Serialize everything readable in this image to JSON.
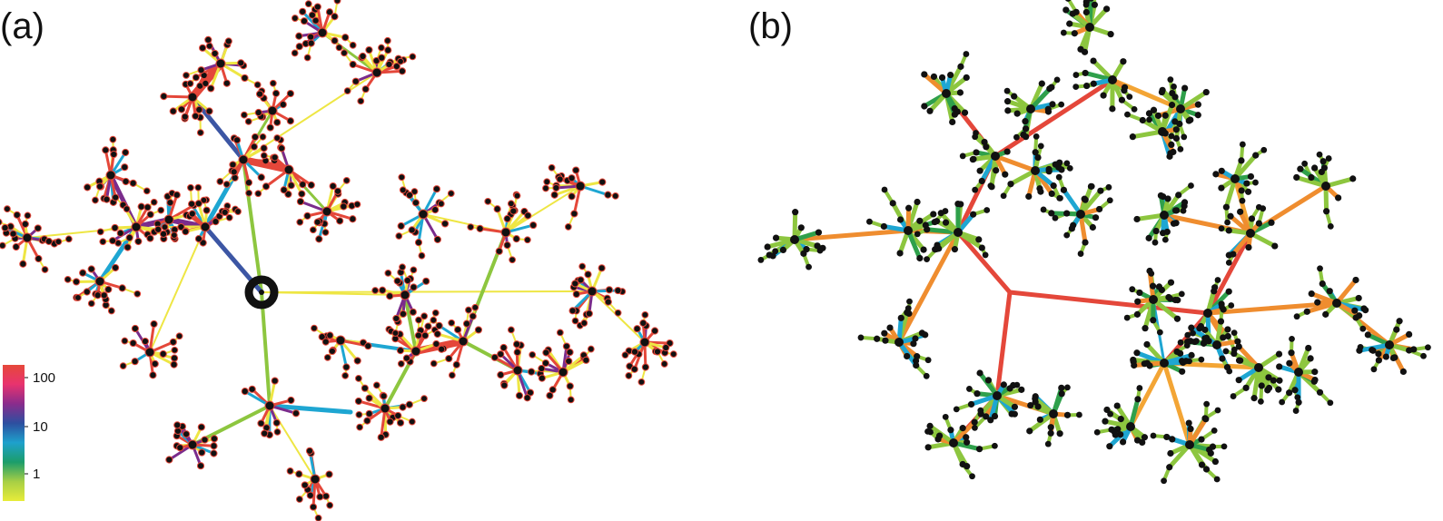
{
  "figure": {
    "panels": [
      {
        "label": "(a)"
      },
      {
        "label": "(b)"
      }
    ],
    "colorbar": {
      "tick_labels": [
        "100",
        "10",
        "1"
      ],
      "colors": [
        "#e6483a",
        "#e8336f",
        "#8a2c8c",
        "#2d4fa0",
        "#1ea1cc",
        "#1c9d6a",
        "#a7cf45",
        "#e8ec3a"
      ]
    },
    "edge_colors": {
      "yellow": "#eee644",
      "lime": "#8dc63f",
      "green": "#2fa04b",
      "cyan": "#1ea6d2",
      "blue": "#3c56a4",
      "purple": "#7a2c8c",
      "magenta": "#d6306f",
      "red": "#e4473a",
      "orange": "#ef8d2f",
      "amber": "#f3a535"
    },
    "node_color": "#111111",
    "node_ring_color": "#e4473a",
    "root_node_color": "#111111"
  }
}
